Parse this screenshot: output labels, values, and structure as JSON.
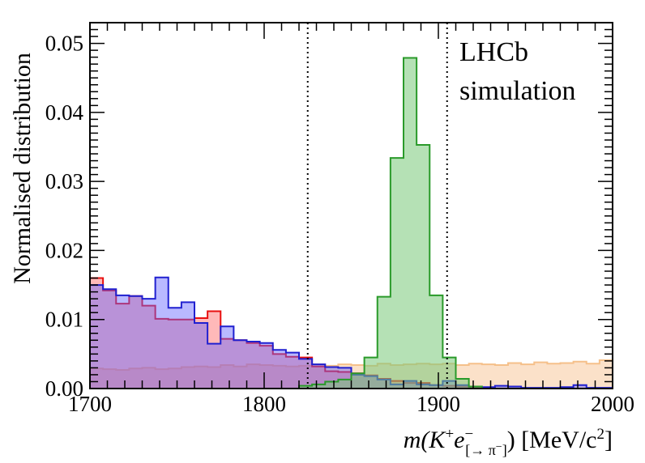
{
  "chart_data": {
    "type": "histogram",
    "xlabel_parts": [
      "m(K",
      "+",
      "e",
      "−",
      "[→ π",
      "−",
      "]",
      ") [MeV/c",
      "2",
      "]"
    ],
    "ylabel": "Normalised distribution",
    "annotation": [
      "LHCb",
      "simulation"
    ],
    "xlim": [
      1700,
      2000
    ],
    "ylim": [
      0,
      0.053
    ],
    "x_ticks": [
      "1700",
      "1800",
      "1900",
      "2000"
    ],
    "y_ticks": [
      "0.00",
      "0.01",
      "0.02",
      "0.03",
      "0.04",
      "0.05"
    ],
    "y_tick_values": [
      0,
      0.01,
      0.02,
      0.03,
      0.04,
      0.05
    ],
    "x_tick_values": [
      1700,
      1800,
      1900,
      2000
    ],
    "vertical_lines": [
      1825,
      1905
    ],
    "bin_edges_start": 1700,
    "bin_width": 7.5,
    "series": [
      {
        "color": "#f5c08a",
        "fill": "#fbe1c9",
        "values": [
          0.0029,
          0.0028,
          0.0027,
          0.0029,
          0.003,
          0.0028,
          0.0029,
          0.0031,
          0.0032,
          0.0031,
          0.0034,
          0.0032,
          0.0035,
          0.0034,
          0.0033,
          0.0032,
          0.0033,
          0.0035,
          0.0033,
          0.0035,
          0.0034,
          0.0033,
          0.0036,
          0.0034,
          0.0035,
          0.0036,
          0.0035,
          0.0036,
          0.0034,
          0.0036,
          0.0035,
          0.0034,
          0.0037,
          0.0035,
          0.0038,
          0.0036,
          0.0037,
          0.0039,
          0.0036,
          0.0041
        ]
      },
      {
        "color": "#e81010",
        "fill": "rgba(255,100,100,0.45)",
        "values": [
          0.016,
          0.0142,
          0.0123,
          0.0134,
          0.012,
          0.0101,
          0.01,
          0.01,
          0.0102,
          0.0112,
          0.0072,
          0.007,
          0.0066,
          0.0062,
          0.005,
          0.0046,
          0.0045,
          0.0032,
          0.0025,
          0.0024,
          0.0022,
          0.0019,
          0.0014,
          0.0011,
          0.0008,
          0.0008,
          0.0005,
          0.0004,
          0.0003,
          0.0002,
          0,
          0,
          0,
          0,
          0,
          0,
          0,
          0,
          0,
          0
        ]
      },
      {
        "color": "#2020d0",
        "fill": "rgba(100,100,255,0.45)",
        "values": [
          0.015,
          0.0144,
          0.0135,
          0.0134,
          0.013,
          0.0161,
          0.0117,
          0.0125,
          0.0095,
          0.0065,
          0.009,
          0.007,
          0.0068,
          0.0066,
          0.0056,
          0.0052,
          0.0043,
          0.0035,
          0.0031,
          0.003,
          0.002,
          0.0018,
          0.0013,
          0.0006,
          0.0011,
          0.0006,
          0.0005,
          0.0011,
          0.0005,
          0.0003,
          0.0002,
          0.0004,
          0.0003,
          0.0001,
          0.0001,
          0.0001,
          0.0002,
          0.0005,
          0.0001,
          0.0001
        ]
      },
      {
        "color": "#2a9a2a",
        "fill": "rgba(120,200,120,0.55)",
        "values": [
          0,
          0,
          0,
          0,
          0,
          0,
          0,
          0,
          0,
          0,
          0,
          0,
          0,
          0,
          0,
          0,
          0.0004,
          0.0006,
          0.001,
          0.0013,
          0.0022,
          0.0045,
          0.0133,
          0.0334,
          0.0479,
          0.0353,
          0.0135,
          0.0045,
          0.0014,
          0.0003,
          0,
          0,
          0,
          0,
          0,
          0,
          0,
          0,
          0,
          0
        ]
      }
    ]
  }
}
